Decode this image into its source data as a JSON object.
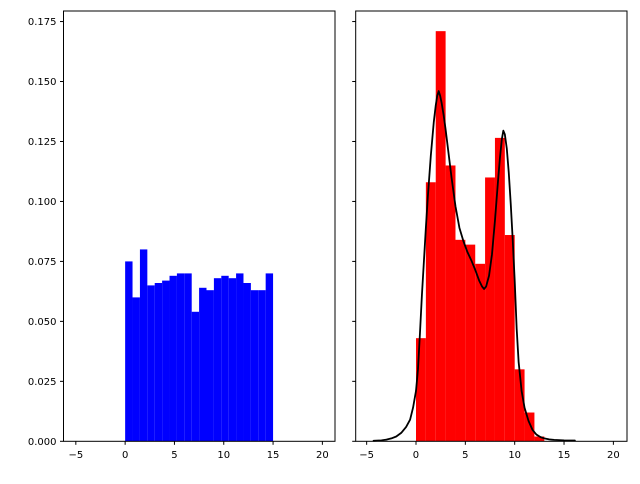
{
  "figure": {
    "background": "#ffffff",
    "spine_color": "#000000",
    "tick_color": "#000000",
    "text_color": "#000000"
  },
  "chart_data": [
    {
      "type": "bar",
      "name": "uniform-histogram",
      "title": "",
      "xlabel": "",
      "ylabel": "",
      "bar_color": "#0000ff",
      "grid": false,
      "legend": "none",
      "xlim": [
        -6.25,
        21.28
      ],
      "ylim": [
        0,
        0.1794
      ],
      "bin_edges": [
        0,
        0.75,
        1.5,
        2.25,
        3,
        3.75,
        4.5,
        5.25,
        6,
        6.75,
        7.5,
        8.25,
        9,
        9.75,
        10.5,
        11.25,
        12,
        12.75,
        13.5,
        14.25,
        15
      ],
      "values": [
        0.075,
        0.06,
        0.08,
        0.065,
        0.066,
        0.067,
        0.069,
        0.07,
        0.07,
        0.054,
        0.064,
        0.063,
        0.068,
        0.069,
        0.068,
        0.07,
        0.066,
        0.063,
        0.063,
        0.07
      ],
      "xticks": {
        "values": [
          -5,
          0,
          5,
          10,
          15,
          20
        ],
        "labels": [
          "−5",
          "0",
          "5",
          "10",
          "15",
          "20"
        ]
      },
      "yticks": {
        "values": [
          0,
          0.025,
          0.05,
          0.075,
          0.1,
          0.125,
          0.15,
          0.175
        ],
        "labels": [
          "0.000",
          "0.025",
          "0.050",
          "0.075",
          "0.100",
          "0.125",
          "0.150",
          "0.175"
        ],
        "show_labels": true
      }
    },
    {
      "type": "bar+line",
      "name": "bimodal-histogram-with-kde",
      "title": "",
      "xlabel": "",
      "ylabel": "",
      "bar_color": "#ff0000",
      "line_color": "#000000",
      "line_width": 1.8,
      "grid": false,
      "legend": "none",
      "xlim": [
        -6.11,
        21.38
      ],
      "ylim": [
        0,
        0.1794
      ],
      "bin_edges": [
        0,
        1,
        2,
        3,
        4,
        5,
        6,
        7,
        8,
        9,
        10,
        11,
        12,
        13
      ],
      "values": [
        0.043,
        0.108,
        0.171,
        0.115,
        0.084,
        0.082,
        0.074,
        0.11,
        0.1265,
        0.086,
        0.03,
        0.012,
        0.002
      ],
      "line": {
        "name": "kde-curve",
        "x": [
          -4.3,
          -3.5,
          -3,
          -2.5,
          -2,
          -1.5,
          -1,
          -0.6,
          -0.3,
          0,
          0.2,
          0.4,
          0.6,
          0.8,
          1,
          1.2,
          1.5,
          1.8,
          2,
          2.15,
          2.3,
          2.45,
          2.6,
          2.8,
          3,
          3.3,
          3.6,
          4,
          4.4,
          4.8,
          5.2,
          5.6,
          6,
          6.4,
          6.7,
          6.9,
          7.1,
          7.4,
          7.7,
          8,
          8.3,
          8.5,
          8.7,
          8.85,
          9,
          9.2,
          9.4,
          9.6,
          9.8,
          10,
          10.2,
          10.4,
          10.7,
          11,
          11.4,
          11.8,
          12.2,
          12.6,
          13,
          13.5,
          14,
          15,
          16.1
        ],
        "y": [
          0.0002,
          0.0004,
          0.0007,
          0.0012,
          0.002,
          0.0035,
          0.006,
          0.009,
          0.014,
          0.021,
          0.03,
          0.045,
          0.061,
          0.075,
          0.089,
          0.102,
          0.119,
          0.133,
          0.14,
          0.144,
          0.146,
          0.144,
          0.141,
          0.136,
          0.13,
          0.12,
          0.11,
          0.098,
          0.089,
          0.0835,
          0.079,
          0.0755,
          0.0715,
          0.067,
          0.0645,
          0.0635,
          0.0645,
          0.069,
          0.078,
          0.092,
          0.108,
          0.118,
          0.126,
          0.1295,
          0.128,
          0.122,
          0.112,
          0.099,
          0.084,
          0.067,
          0.047,
          0.033,
          0.021,
          0.014,
          0.0085,
          0.0048,
          0.0028,
          0.0018,
          0.0012,
          0.0008,
          0.0006,
          0.0004,
          0.0003
        ]
      },
      "xticks": {
        "values": [
          -5,
          0,
          5,
          10,
          15,
          20
        ],
        "labels": [
          "−5",
          "0",
          "5",
          "10",
          "15",
          "20"
        ]
      },
      "yticks": {
        "values": [
          0,
          0.025,
          0.05,
          0.075,
          0.1,
          0.125,
          0.15,
          0.175
        ],
        "labels": [
          "0.000",
          "0.025",
          "0.050",
          "0.075",
          "0.100",
          "0.125",
          "0.150",
          "0.175"
        ],
        "show_labels": false
      }
    }
  ]
}
